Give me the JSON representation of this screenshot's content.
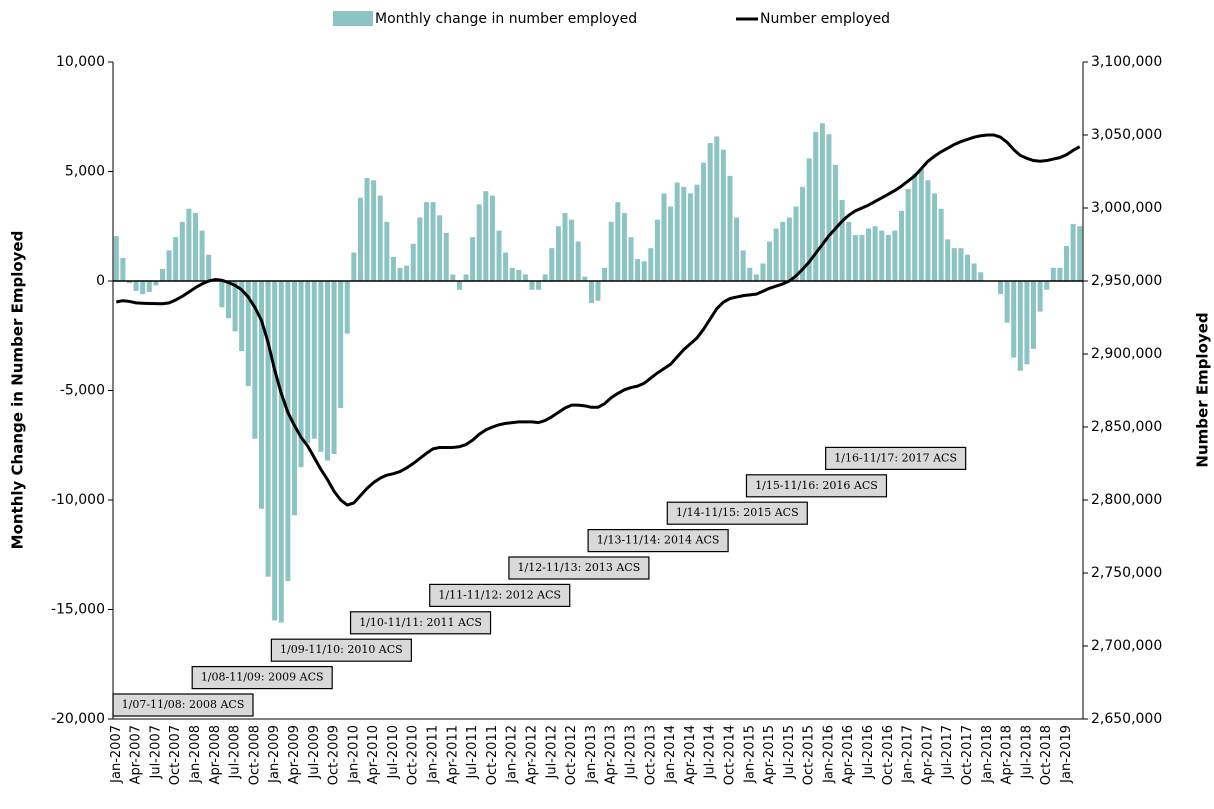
{
  "chart_data": {
    "type": "bar",
    "y_label": "Monthly Change in Number Employed",
    "y2_label": "Number Employed",
    "categories": [
      "Jan-2007",
      null,
      null,
      "Apr-2007",
      null,
      null,
      "Jul-2007",
      null,
      null,
      "Oct-2007",
      null,
      null,
      "Jan-2008",
      null,
      null,
      "Apr-2008",
      null,
      null,
      "Jul-2008",
      null,
      null,
      "Oct-2008",
      null,
      null,
      "Jan-2009",
      null,
      null,
      "Apr-2009",
      null,
      null,
      "Jul-2009",
      null,
      null,
      "Oct-2009",
      null,
      null,
      "Jan-2010",
      null,
      null,
      "Apr-2010",
      null,
      null,
      "Jul-2010",
      null,
      null,
      "Oct-2010",
      null,
      null,
      "Jan-2011",
      null,
      null,
      "Apr-2011",
      null,
      null,
      "Jul-2011",
      null,
      null,
      "Oct-2011",
      null,
      null,
      "Jan-2012",
      null,
      null,
      "Apr-2012",
      null,
      null,
      "Jul-2012",
      null,
      null,
      "Oct-2012",
      null,
      null,
      "Jan-2013",
      null,
      null,
      "Apr-2013",
      null,
      null,
      "Jul-2013",
      null,
      null,
      "Oct-2013",
      null,
      null,
      "Jan-2014",
      null,
      null,
      "Apr-2014",
      null,
      null,
      "Jul-2014",
      null,
      null,
      "Oct-2014",
      null,
      null,
      "Jan-2015",
      null,
      null,
      "Apr-2015",
      null,
      null,
      "Jul-2015",
      null,
      null,
      "Oct-2015",
      null,
      null,
      "Jan-2016",
      null,
      null,
      "Apr-2016",
      null,
      null,
      "Jul-2016",
      null,
      null,
      "Oct-2016",
      null,
      null,
      "Jan-2017",
      null,
      null,
      "Apr-2017",
      null,
      null,
      "Jul-2017",
      null,
      null,
      "Oct-2017",
      null,
      null,
      "Jan-2018",
      null,
      null,
      "Apr-2018",
      null,
      null,
      "Jul-2018",
      null,
      null,
      "Oct-2018",
      null,
      null,
      "Jan-2019",
      null,
      null
    ],
    "series": [
      {
        "name": "Monthly change in number employed",
        "type": "bar",
        "color": "#8cc3c3",
        "values": [
          2050,
          1050,
          -100,
          -450,
          -600,
          -500,
          -200,
          550,
          1400,
          2000,
          2700,
          3300,
          3100,
          2300,
          1200,
          100,
          -1200,
          -1700,
          -2300,
          -3200,
          -4800,
          -7200,
          -10400,
          -13500,
          -15500,
          -15600,
          -13700,
          -10700,
          -8500,
          -7400,
          -7200,
          -7800,
          -8200,
          -7900,
          -5800,
          -2400,
          1300,
          3800,
          4700,
          4600,
          3900,
          2700,
          1100,
          600,
          700,
          1700,
          2900,
          3600,
          3600,
          3000,
          2200,
          300,
          -400,
          300,
          2000,
          3500,
          4100,
          3900,
          2300,
          1300,
          600,
          500,
          300,
          -400,
          -400,
          300,
          1500,
          2500,
          3100,
          2800,
          1800,
          200,
          -1000,
          -900,
          600,
          2700,
          3600,
          3100,
          2000,
          1000,
          900,
          1500,
          2800,
          4000,
          3400,
          4500,
          4300,
          4000,
          4400,
          5400,
          6300,
          6600,
          6000,
          4800,
          2900,
          1400,
          600,
          300,
          800,
          1800,
          2400,
          2700,
          2900,
          3400,
          4300,
          5600,
          6800,
          7200,
          6700,
          5300,
          3700,
          2700,
          2100,
          2100,
          2400,
          2500,
          2300,
          2100,
          2300,
          3200,
          4200,
          4900,
          5100,
          4600,
          4000,
          3300,
          1900,
          1500,
          1500,
          1200,
          800,
          400,
          0,
          0,
          -600,
          -1900,
          -3500,
          -4100,
          -3800,
          -3100,
          -1400,
          -400,
          600,
          600,
          1600,
          2600,
          2500
        ]
      },
      {
        "name": "Number employed",
        "type": "line",
        "axis": "y2",
        "color": "#000000",
        "values": [
          2935600,
          2936500,
          2936000,
          2935000,
          2934800,
          2934600,
          2934500,
          2934400,
          2935000,
          2937000,
          2939500,
          2942500,
          2945500,
          2948000,
          2950000,
          2951000,
          2950500,
          2949000,
          2947000,
          2944000,
          2939000,
          2932000,
          2923000,
          2908000,
          2889000,
          2873000,
          2860000,
          2851000,
          2843000,
          2837000,
          2829000,
          2821000,
          2814000,
          2806000,
          2800000,
          2796500,
          2798000,
          2803000,
          2808000,
          2812000,
          2815000,
          2817000,
          2818000,
          2819500,
          2822000,
          2825000,
          2828500,
          2832000,
          2835000,
          2836000,
          2836000,
          2836000,
          2836500,
          2838000,
          2841000,
          2845000,
          2848000,
          2850000,
          2851500,
          2852500,
          2853000,
          2853500,
          2853500,
          2853500,
          2853000,
          2854500,
          2857000,
          2860000,
          2863000,
          2865000,
          2865000,
          2864500,
          2863500,
          2863500,
          2866000,
          2870000,
          2873000,
          2875500,
          2877000,
          2878000,
          2880000,
          2883500,
          2887000,
          2890000,
          2893000,
          2898000,
          2903000,
          2907000,
          2911000,
          2917000,
          2924000,
          2931000,
          2935500,
          2938000,
          2939000,
          2940000,
          2940500,
          2941000,
          2943000,
          2945000,
          2946500,
          2948000,
          2950000,
          2953500,
          2958000,
          2963000,
          2969000,
          2975000,
          2981000,
          2986000,
          2991000,
          2995000,
          2998000,
          3000000,
          3002000,
          3004500,
          3007000,
          3009500,
          3012000,
          3015000,
          3018500,
          3022000,
          3027000,
          3032000,
          3035500,
          3038500,
          3041000,
          3043500,
          3045500,
          3047000,
          3048500,
          3049500,
          3050000,
          3050000,
          3048500,
          3045000,
          3040000,
          3036000,
          3034000,
          3032500,
          3032000,
          3032500,
          3033500,
          3034500,
          3036500,
          3039500,
          3042000
        ]
      }
    ],
    "ylim": [
      -20000,
      10000
    ],
    "yticks": [
      {
        "value": -20000,
        "label": "-20,000"
      },
      {
        "value": -15000,
        "label": "-15,000"
      },
      {
        "value": -10000,
        "label": "-10,000"
      },
      {
        "value": -5000,
        "label": "-5,000"
      },
      0,
      {
        "value": 5000,
        "label": "5,000"
      },
      {
        "value": 10000,
        "label": "10,000"
      }
    ],
    "y2lim": [
      2650000,
      3100000
    ],
    "y2ticks": [
      {
        "value": 2650000,
        "label": "2,650,000"
      },
      {
        "value": 2700000,
        "label": "2,700,000"
      },
      {
        "value": 2750000,
        "label": "2,750,000"
      },
      {
        "value": 2800000,
        "label": "2,800,000"
      },
      {
        "value": 2850000,
        "label": "2,850,000"
      },
      {
        "value": 2900000,
        "label": "2,900,000"
      },
      {
        "value": 2950000,
        "label": "2,950,000"
      },
      {
        "value": 3000000,
        "label": "3,000,000"
      },
      {
        "value": 3050000,
        "label": "3,050,000"
      },
      {
        "value": 3100000,
        "label": "3,100,000"
      }
    ],
    "annotations": [
      "1/07-11/08: 2008 ACS",
      "1/08-11/09: 2009 ACS",
      "1/09-11/10: 2010 ACS",
      "1/10-11/11: 2011 ACS",
      "1/11-11/12: 2012 ACS",
      "1/12-11/13: 2013 ACS",
      "1/13-11/14: 2014 ACS",
      "1/14-11/15: 2015 ACS",
      "1/15-11/16: 2016 ACS",
      "1/16-11/17: 2017 ACS"
    ],
    "legend": "top"
  }
}
